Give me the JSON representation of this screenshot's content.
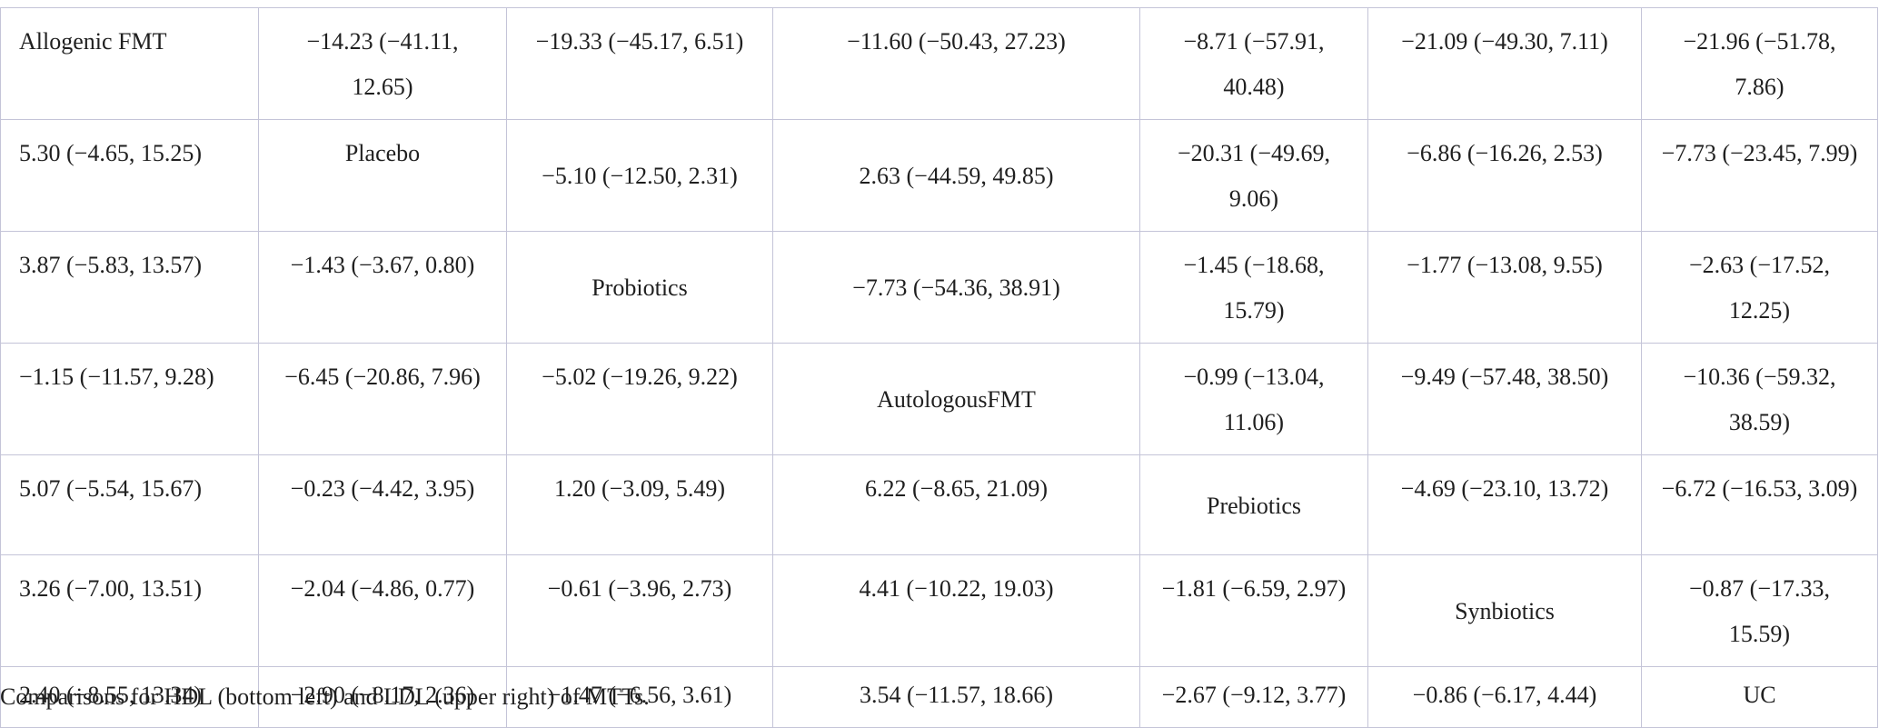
{
  "table": {
    "rows": [
      [
        "Allogenic FMT",
        "−14.23 (−41.11, 12.65)",
        "−19.33 (−45.17, 6.51)",
        "−11.60 (−50.43, 27.23)",
        "−8.71 (−57.91, 40.48)",
        "−21.09 (−49.30, 7.11)",
        "−21.96 (−51.78, 7.86)"
      ],
      [
        "5.30 (−4.65, 15.25)",
        "Placebo",
        "−5.10 (−12.50, 2.31)",
        "2.63 (−44.59, 49.85)",
        "−20.31 (−49.69, 9.06)",
        "−6.86 (−16.26, 2.53)",
        "−7.73 (−23.45, 7.99)"
      ],
      [
        "3.87 (−5.83, 13.57)",
        "−1.43 (−3.67, 0.80)",
        "Probiotics",
        "−7.73 (−54.36, 38.91)",
        "−1.45 (−18.68, 15.79)",
        "−1.77 (−13.08, 9.55)",
        "−2.63 (−17.52, 12.25)"
      ],
      [
        "−1.15 (−11.57, 9.28)",
        "−6.45 (−20.86, 7.96)",
        "−5.02 (−19.26, 9.22)",
        "AutologousFMT",
        "−0.99 (−13.04, 11.06)",
        "−9.49 (−57.48, 38.50)",
        "−10.36 (−59.32, 38.59)"
      ],
      [
        "5.07 (−5.54, 15.67)",
        "−0.23 (−4.42, 3.95)",
        "1.20 (−3.09, 5.49)",
        "6.22 (−8.65, 21.09)",
        "Prebiotics",
        "−4.69 (−23.10, 13.72)",
        "−6.72 (−16.53, 3.09)"
      ],
      [
        "3.26 (−7.00, 13.51)",
        "−2.04 (−4.86, 0.77)",
        "−0.61 (−3.96, 2.73)",
        "4.41 (−10.22, 19.03)",
        "−1.81 (−6.59, 2.97)",
        "Synbiotics",
        "−0.87 (−17.33, 15.59)"
      ],
      [
        "2.40 (−8.55, 13.34)",
        "−2.90 (−8.17, 2.36)",
        "−1.47 (−6.56, 3.61)",
        "3.54 (−11.57, 18.66)",
        "−2.67 (−9.12, 3.77)",
        "−0.86 (−6.17, 4.44)",
        "UC"
      ]
    ]
  },
  "caption": "Comparisons for HDL (bottom left) and LDL (upper right) of MTTs."
}
